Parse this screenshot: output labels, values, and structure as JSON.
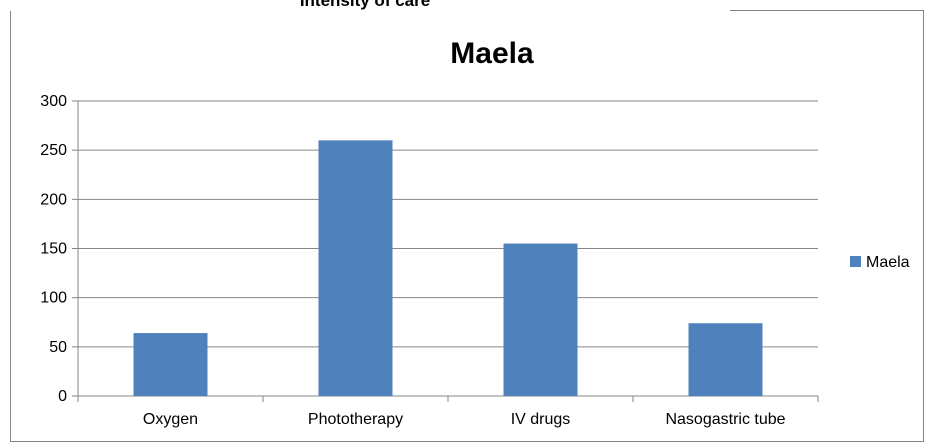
{
  "header": {
    "heading": "Intensity of care"
  },
  "chart_data": {
    "type": "bar",
    "title": "Maela",
    "categories": [
      "Oxygen",
      "Phototherapy",
      "IV drugs",
      "Nasogastric tube"
    ],
    "series": [
      {
        "name": "Maela",
        "values": [
          64,
          260,
          155,
          74
        ],
        "color": "#4f81bd"
      }
    ],
    "ylim": [
      0,
      300
    ],
    "yticks": [
      0,
      50,
      100,
      150,
      200,
      250,
      300
    ],
    "grid": true,
    "legend": "right"
  }
}
